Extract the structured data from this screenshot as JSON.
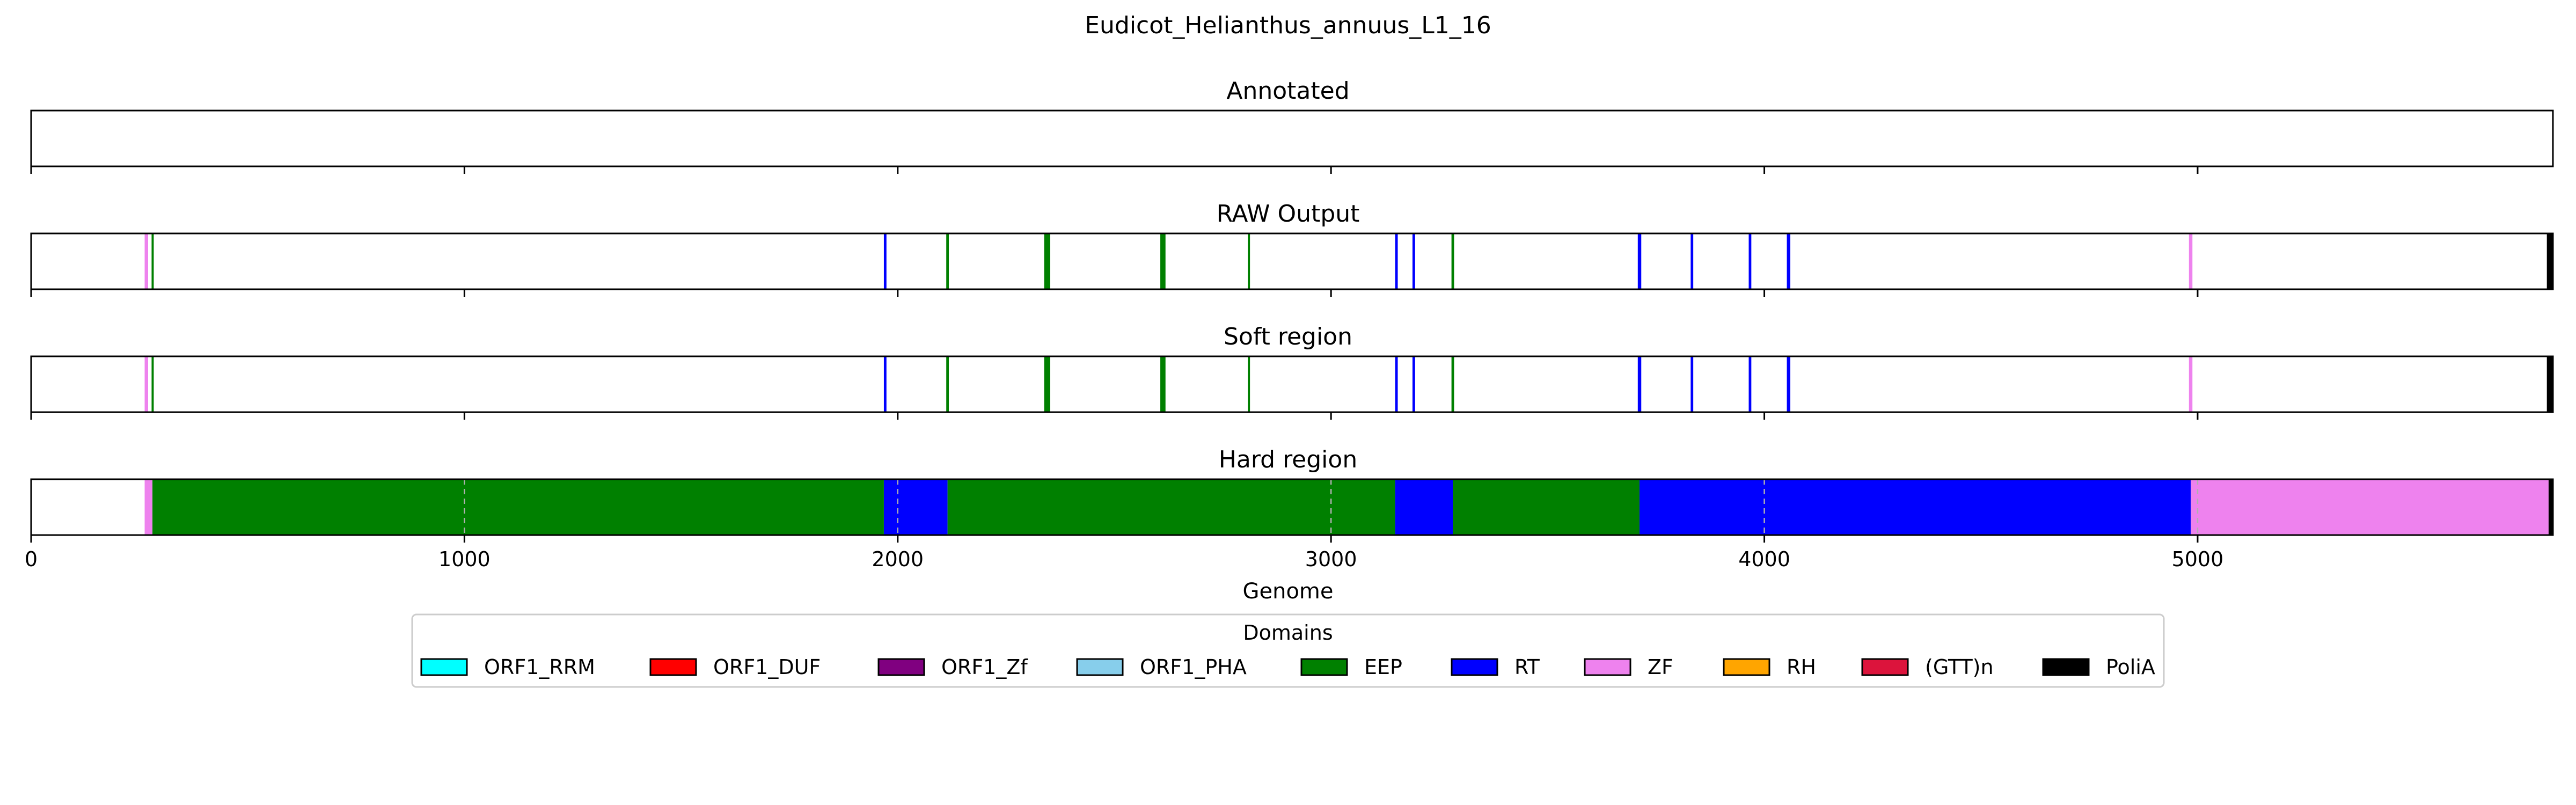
{
  "chart_data": {
    "type": "bar",
    "title": "Eudicot_Helianthus_annuus_L1_16",
    "xlabel": "Genome",
    "xlim": [
      0,
      5820
    ],
    "xticks": [
      0,
      1000,
      2000,
      3000,
      4000,
      5000
    ],
    "grid": "dashed vertical lines on Hard region panel",
    "panels": [
      {
        "title": "Annotated",
        "segments": []
      },
      {
        "title": "RAW Output",
        "segments": [
          {
            "start": 262,
            "end": 270,
            "domain": "ZF"
          },
          {
            "start": 278,
            "end": 282,
            "domain": "EEP"
          },
          {
            "start": 1968,
            "end": 1974,
            "domain": "RT"
          },
          {
            "start": 2112,
            "end": 2118,
            "domain": "EEP"
          },
          {
            "start": 2338,
            "end": 2352,
            "domain": "EEP"
          },
          {
            "start": 2606,
            "end": 2618,
            "domain": "EEP"
          },
          {
            "start": 2808,
            "end": 2812,
            "domain": "EEP"
          },
          {
            "start": 3148,
            "end": 3154,
            "domain": "RT"
          },
          {
            "start": 3188,
            "end": 3194,
            "domain": "RT"
          },
          {
            "start": 3278,
            "end": 3284,
            "domain": "EEP"
          },
          {
            "start": 3708,
            "end": 3716,
            "domain": "RT"
          },
          {
            "start": 3830,
            "end": 3836,
            "domain": "RT"
          },
          {
            "start": 3964,
            "end": 3970,
            "domain": "RT"
          },
          {
            "start": 4052,
            "end": 4060,
            "domain": "RT"
          },
          {
            "start": 4980,
            "end": 4988,
            "domain": "ZF"
          },
          {
            "start": 5806,
            "end": 5820,
            "domain": "PoliA"
          }
        ]
      },
      {
        "title": "Soft region",
        "segments": [
          {
            "start": 262,
            "end": 270,
            "domain": "ZF"
          },
          {
            "start": 278,
            "end": 282,
            "domain": "EEP"
          },
          {
            "start": 1968,
            "end": 1974,
            "domain": "RT"
          },
          {
            "start": 2112,
            "end": 2118,
            "domain": "EEP"
          },
          {
            "start": 2338,
            "end": 2352,
            "domain": "EEP"
          },
          {
            "start": 2606,
            "end": 2618,
            "domain": "EEP"
          },
          {
            "start": 2808,
            "end": 2812,
            "domain": "EEP"
          },
          {
            "start": 3148,
            "end": 3154,
            "domain": "RT"
          },
          {
            "start": 3188,
            "end": 3194,
            "domain": "RT"
          },
          {
            "start": 3278,
            "end": 3284,
            "domain": "EEP"
          },
          {
            "start": 3708,
            "end": 3716,
            "domain": "RT"
          },
          {
            "start": 3830,
            "end": 3836,
            "domain": "RT"
          },
          {
            "start": 3964,
            "end": 3970,
            "domain": "RT"
          },
          {
            "start": 4052,
            "end": 4060,
            "domain": "RT"
          },
          {
            "start": 4980,
            "end": 4988,
            "domain": "ZF"
          },
          {
            "start": 5806,
            "end": 5820,
            "domain": "PoliA"
          }
        ]
      },
      {
        "title": "Hard region",
        "grid": true,
        "segments": [
          {
            "start": 262,
            "end": 280,
            "domain": "ZF"
          },
          {
            "start": 280,
            "end": 1968,
            "domain": "EEP"
          },
          {
            "start": 1968,
            "end": 2115,
            "domain": "RT"
          },
          {
            "start": 2115,
            "end": 3148,
            "domain": "EEP"
          },
          {
            "start": 3148,
            "end": 3281,
            "domain": "RT"
          },
          {
            "start": 3281,
            "end": 3712,
            "domain": "EEP"
          },
          {
            "start": 3712,
            "end": 4984,
            "domain": "RT"
          },
          {
            "start": 4984,
            "end": 5810,
            "domain": "ZF"
          },
          {
            "start": 5810,
            "end": 5820,
            "domain": "PoliA"
          }
        ]
      }
    ],
    "legend": {
      "title": "Domains",
      "placement": "bottom-center",
      "entries": [
        {
          "name": "ORF1_RRM",
          "color": "#00ffff"
        },
        {
          "name": "ORF1_DUF",
          "color": "#ff0000"
        },
        {
          "name": "ORF1_Zf",
          "color": "#800080"
        },
        {
          "name": "ORF1_PHA",
          "color": "#87ceeb"
        },
        {
          "name": "EEP",
          "color": "#008000"
        },
        {
          "name": "RT",
          "color": "#0000ff"
        },
        {
          "name": "ZF",
          "color": "#ee82ee"
        },
        {
          "name": "RH",
          "color": "#ffa500"
        },
        {
          "name": "(GTT)n",
          "color": "#dc143c"
        },
        {
          "name": "PoliA",
          "color": "#000000"
        }
      ]
    }
  }
}
